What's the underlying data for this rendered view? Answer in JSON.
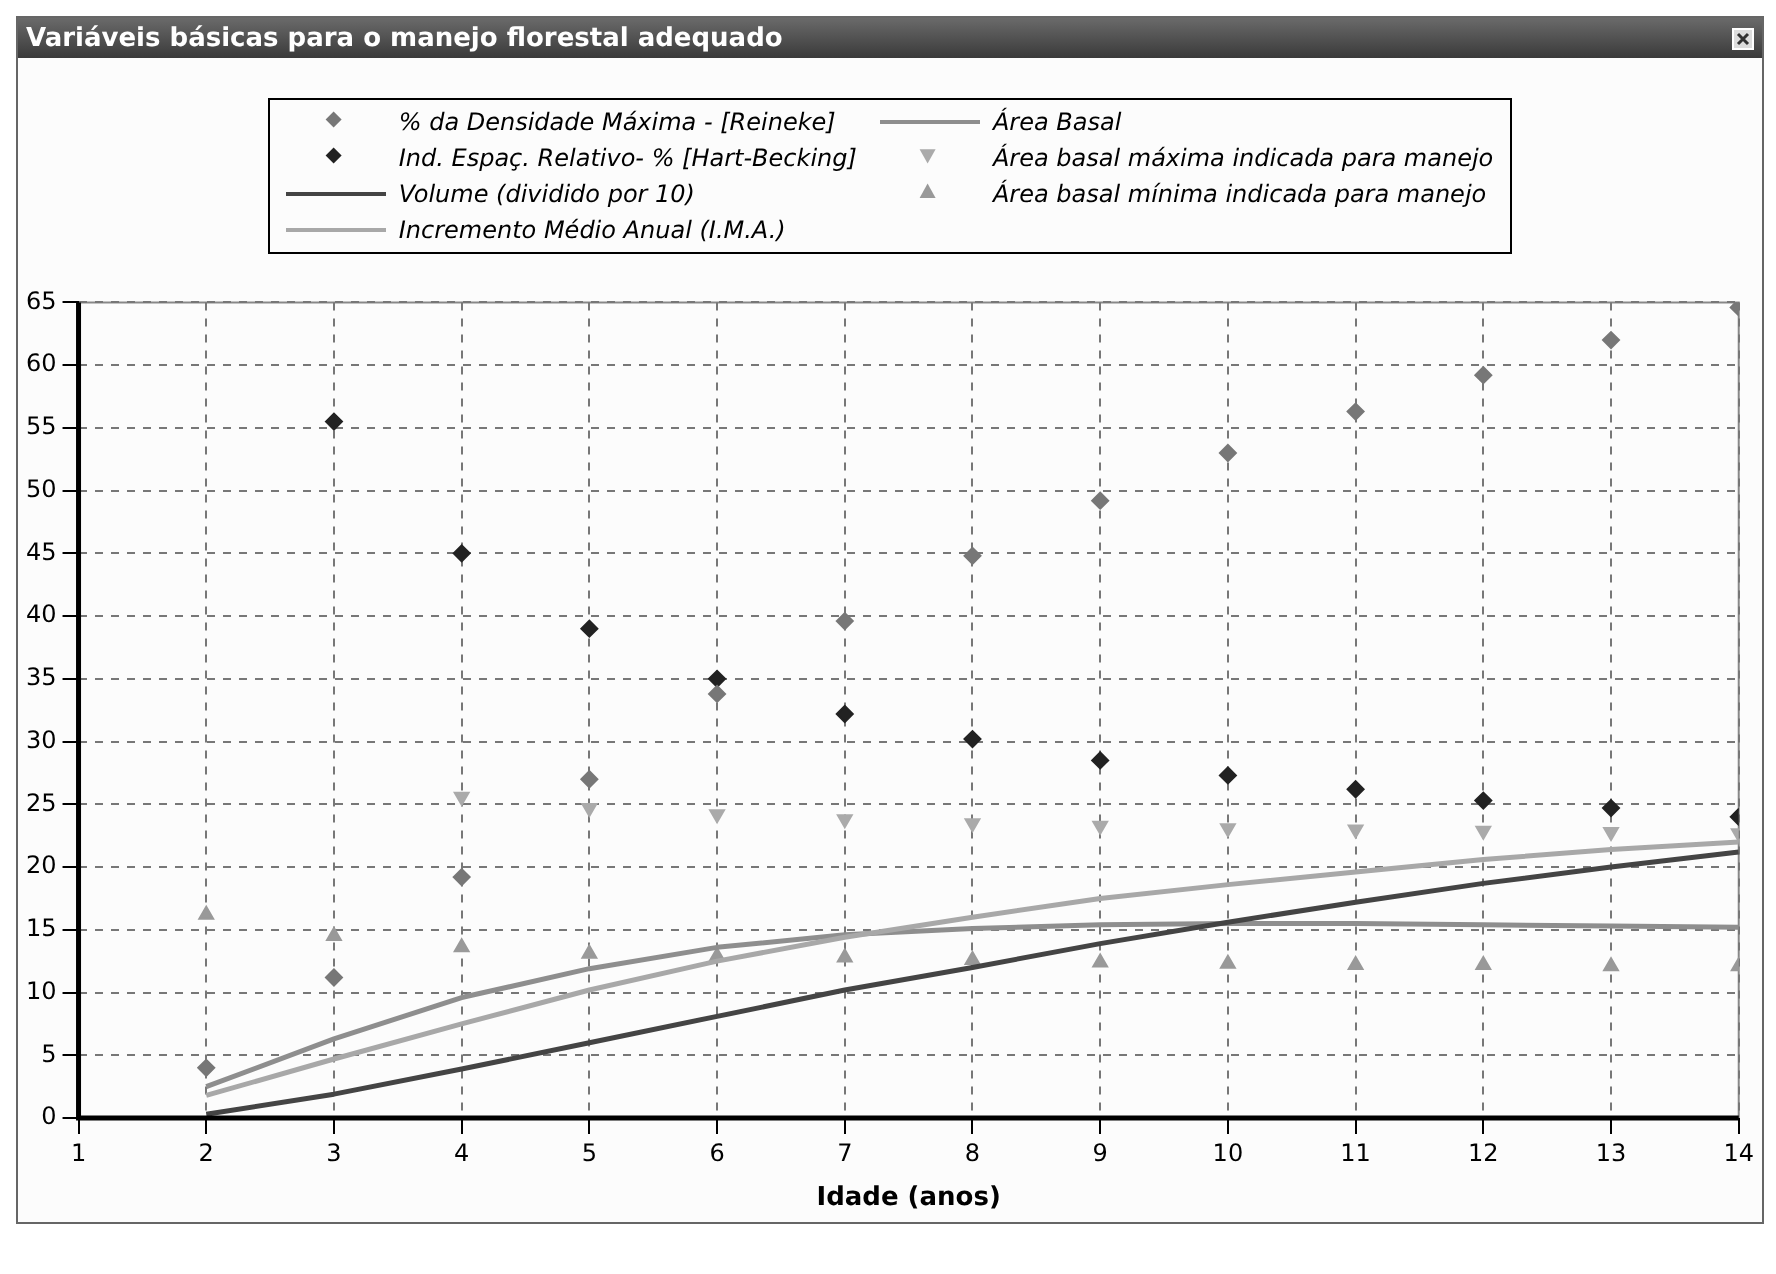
{
  "chart_data": {
    "type": "scatter",
    "title": "Variáveis básicas para o manejo florestal adequado",
    "xlabel": "Idade (anos)",
    "x": [
      2,
      3,
      4,
      5,
      6,
      7,
      8,
      9,
      10,
      11,
      12,
      13,
      14
    ],
    "series": [
      {
        "name": "% da Densidade Máxima - [Reineke]",
        "marker": "diamond",
        "color": "#777777",
        "values": [
          4,
          11.2,
          19.2,
          27,
          33.8,
          39.6,
          44.8,
          49.2,
          53,
          56.3,
          59.2,
          62,
          64.6
        ]
      },
      {
        "name": "Ind. Espaç. Relativo- %  [Hart-Becking]",
        "marker": "diamond",
        "color": "#222222",
        "values": [
          null,
          55.5,
          45,
          39,
          35,
          32.2,
          30.2,
          28.5,
          27.3,
          26.2,
          25.3,
          24.7,
          24
        ]
      },
      {
        "name": "Volume  (dividido por 10)",
        "type": "line",
        "marker": "none",
        "color": "#444444",
        "values": [
          0.3,
          1.9,
          3.9,
          6,
          8.1,
          10.2,
          12,
          13.9,
          15.6,
          17.2,
          18.7,
          20,
          21.2
        ]
      },
      {
        "name": "Incremento Médio Anual  (I.M.A.)",
        "type": "line",
        "marker": "none",
        "color": "#a8a8a8",
        "values": [
          1.8,
          4.7,
          7.5,
          10.2,
          12.5,
          14.4,
          16,
          17.5,
          18.6,
          19.6,
          20.6,
          21.4,
          22
        ]
      },
      {
        "name": "Área Basal",
        "type": "line",
        "marker": "none",
        "color": "#8e8e8e",
        "values": [
          2.5,
          6.3,
          9.6,
          11.9,
          13.6,
          14.6,
          15.1,
          15.4,
          15.5,
          15.5,
          15.4,
          15.3,
          15.2
        ]
      },
      {
        "name": "Área basal máxima indicada para manejo",
        "marker": "triangle-down",
        "color": "#aaaaaa",
        "values": [
          null,
          null,
          25.6,
          24.7,
          24.2,
          23.8,
          23.5,
          23.3,
          23.1,
          23,
          22.9,
          22.8,
          22.7
        ]
      },
      {
        "name": "Área basal mínima indicada para manejo",
        "marker": "triangle",
        "color": "#999999",
        "values": [
          16.2,
          14.5,
          13.6,
          13.1,
          12.9,
          12.8,
          12.6,
          12.4,
          12.3,
          12.2,
          12.2,
          12.1,
          12.1
        ]
      }
    ],
    "xlim": [
      1,
      14
    ],
    "xticks": [
      1,
      2,
      3,
      4,
      5,
      6,
      7,
      8,
      9,
      10,
      11,
      12,
      13,
      14
    ],
    "ylim": [
      0,
      65
    ],
    "yticks": [
      0,
      5,
      10,
      15,
      20,
      25,
      30,
      35,
      40,
      45,
      50,
      55,
      60,
      65
    ],
    "grid": true,
    "legend": "top"
  }
}
